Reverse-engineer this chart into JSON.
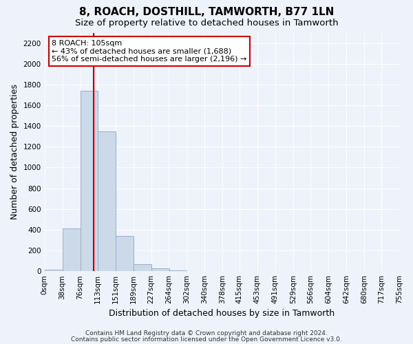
{
  "title": "8, ROACH, DOSTHILL, TAMWORTH, B77 1LN",
  "subtitle": "Size of property relative to detached houses in Tamworth",
  "xlabel": "Distribution of detached houses by size in Tamworth",
  "ylabel": "Number of detached properties",
  "bar_left_edges": [
    0,
    38,
    76,
    113,
    151,
    189,
    227,
    264,
    302,
    340,
    378,
    415,
    453,
    491,
    529,
    566,
    604,
    642,
    680,
    717
  ],
  "bar_heights": [
    15,
    410,
    1740,
    1350,
    340,
    70,
    25,
    5,
    0,
    0,
    0,
    0,
    0,
    0,
    0,
    0,
    0,
    0,
    0,
    0
  ],
  "bin_width": 38,
  "xtick_labels": [
    "0sqm",
    "38sqm",
    "76sqm",
    "113sqm",
    "151sqm",
    "189sqm",
    "227sqm",
    "264sqm",
    "302sqm",
    "340sqm",
    "378sqm",
    "415sqm",
    "453sqm",
    "491sqm",
    "529sqm",
    "566sqm",
    "604sqm",
    "642sqm",
    "680sqm",
    "717sqm",
    "755sqm"
  ],
  "ylim": [
    0,
    2300
  ],
  "yticks": [
    0,
    200,
    400,
    600,
    800,
    1000,
    1200,
    1400,
    1600,
    1800,
    2000,
    2200
  ],
  "bar_color": "#ccd9e8",
  "bar_edge_color": "#9ab0c8",
  "property_value": 105,
  "red_line_color": "#cc0000",
  "annotation_title": "8 ROACH: 105sqm",
  "annotation_line1": "← 43% of detached houses are smaller (1,688)",
  "annotation_line2": "56% of semi-detached houses are larger (2,196) →",
  "annotation_box_color": "#ffffff",
  "annotation_box_edge": "#cc0000",
  "footer1": "Contains HM Land Registry data © Crown copyright and database right 2024.",
  "footer2": "Contains public sector information licensed under the Open Government Licence v3.0.",
  "background_color": "#eef2fa",
  "grid_color": "#ffffff",
  "title_fontsize": 11,
  "subtitle_fontsize": 9.5,
  "axis_label_fontsize": 9,
  "tick_fontsize": 7.5,
  "annotation_fontsize": 8,
  "footer_fontsize": 6.5
}
